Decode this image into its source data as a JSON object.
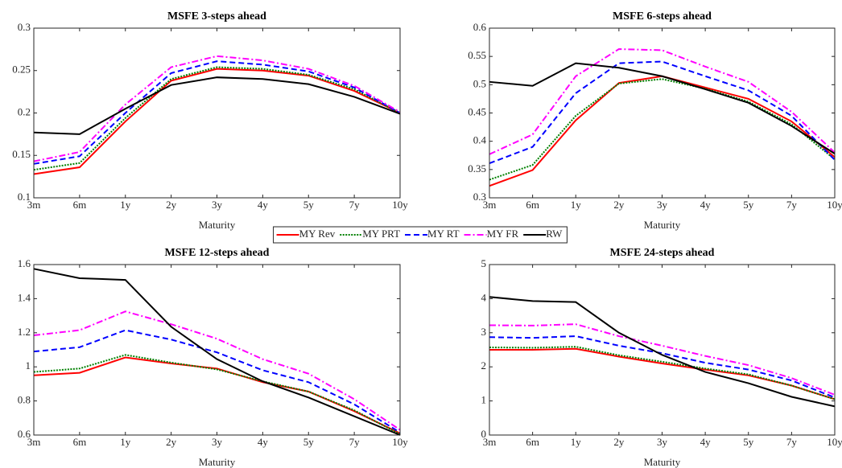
{
  "legend": [
    {
      "name": "MY Rev",
      "color": "#ff0000",
      "dash": "solid"
    },
    {
      "name": "MY PRT",
      "color": "#008000",
      "dash": "dotted"
    },
    {
      "name": "MY RT",
      "color": "#0000ff",
      "dash": "dashed"
    },
    {
      "name": "MY FR",
      "color": "#ff00ff",
      "dash": "dashdot"
    },
    {
      "name": "RW",
      "color": "#000000",
      "dash": "solid"
    }
  ],
  "chart_data": [
    {
      "type": "line",
      "title": "MSFE 3-steps ahead",
      "xlabel": "Maturity",
      "categories": [
        "3m",
        "6m",
        "1y",
        "2y",
        "3y",
        "4y",
        "5y",
        "7y",
        "10y"
      ],
      "series": [
        {
          "values": [
            0.128,
            0.136,
            0.19,
            0.238,
            0.252,
            0.25,
            0.244,
            0.226,
            0.2
          ]
        },
        {
          "values": [
            0.133,
            0.141,
            0.194,
            0.24,
            0.254,
            0.252,
            0.245,
            0.228,
            0.2
          ]
        },
        {
          "values": [
            0.14,
            0.149,
            0.2,
            0.247,
            0.261,
            0.257,
            0.249,
            0.23,
            0.2
          ]
        },
        {
          "values": [
            0.143,
            0.154,
            0.21,
            0.254,
            0.267,
            0.262,
            0.252,
            0.232,
            0.201
          ]
        },
        {
          "values": [
            0.177,
            0.175,
            0.205,
            0.233,
            0.242,
            0.24,
            0.234,
            0.219,
            0.199
          ]
        }
      ],
      "ylim": [
        0.1,
        0.3
      ],
      "yticks": [
        0.1,
        0.15,
        0.2,
        0.25,
        0.3
      ]
    },
    {
      "type": "line",
      "title": "MSFE 6-steps ahead",
      "xlabel": "Maturity",
      "categories": [
        "3m",
        "6m",
        "1y",
        "2y",
        "3y",
        "4y",
        "5y",
        "7y",
        "10y"
      ],
      "series": [
        {
          "values": [
            0.321,
            0.349,
            0.437,
            0.503,
            0.515,
            0.495,
            0.475,
            0.435,
            0.372
          ]
        },
        {
          "values": [
            0.332,
            0.358,
            0.445,
            0.502,
            0.51,
            0.493,
            0.47,
            0.43,
            0.368
          ]
        },
        {
          "values": [
            0.361,
            0.39,
            0.485,
            0.538,
            0.541,
            0.515,
            0.49,
            0.445,
            0.367
          ]
        },
        {
          "values": [
            0.377,
            0.412,
            0.515,
            0.563,
            0.561,
            0.532,
            0.505,
            0.452,
            0.38
          ]
        },
        {
          "values": [
            0.505,
            0.498,
            0.538,
            0.53,
            0.515,
            0.492,
            0.468,
            0.427,
            0.378
          ]
        }
      ],
      "ylim": [
        0.3,
        0.6
      ],
      "yticks": [
        0.3,
        0.35,
        0.4,
        0.45,
        0.5,
        0.55,
        0.6
      ]
    },
    {
      "type": "line",
      "title": "MSFE 12-steps ahead",
      "xlabel": "Maturity",
      "categories": [
        "3m",
        "6m",
        "1y",
        "2y",
        "3y",
        "4y",
        "5y",
        "7y",
        "10y"
      ],
      "series": [
        {
          "values": [
            0.95,
            0.965,
            1.055,
            1.02,
            0.99,
            0.91,
            0.855,
            0.74,
            0.61
          ]
        },
        {
          "values": [
            0.97,
            0.99,
            1.07,
            1.025,
            0.985,
            0.915,
            0.855,
            0.745,
            0.605
          ]
        },
        {
          "values": [
            1.09,
            1.115,
            1.215,
            1.16,
            1.085,
            0.98,
            0.91,
            0.78,
            0.615
          ]
        },
        {
          "values": [
            1.185,
            1.215,
            1.325,
            1.25,
            1.165,
            1.045,
            0.96,
            0.81,
            0.63
          ]
        },
        {
          "values": [
            1.575,
            1.52,
            1.51,
            1.235,
            1.045,
            0.915,
            0.82,
            0.71,
            0.6
          ]
        }
      ],
      "ylim": [
        0.6,
        1.6
      ],
      "yticks": [
        0.6,
        0.8,
        1,
        1.2,
        1.4,
        1.6
      ]
    },
    {
      "type": "line",
      "title": "MSFE 24-steps ahead",
      "xlabel": "Maturity",
      "categories": [
        "3m",
        "6m",
        "1y",
        "2y",
        "3y",
        "4y",
        "5y",
        "7y",
        "10y"
      ],
      "series": [
        {
          "values": [
            2.5,
            2.5,
            2.53,
            2.3,
            2.1,
            1.92,
            1.75,
            1.45,
            1.05
          ]
        },
        {
          "values": [
            2.57,
            2.56,
            2.59,
            2.34,
            2.15,
            1.95,
            1.78,
            1.45,
            1.05
          ]
        },
        {
          "values": [
            2.87,
            2.85,
            2.9,
            2.62,
            2.4,
            2.12,
            1.92,
            1.6,
            1.1
          ]
        },
        {
          "values": [
            3.22,
            3.21,
            3.25,
            2.9,
            2.62,
            2.32,
            2.05,
            1.67,
            1.18
          ]
        },
        {
          "values": [
            4.05,
            3.93,
            3.9,
            3.0,
            2.35,
            1.85,
            1.52,
            1.12,
            0.84
          ]
        }
      ],
      "ylim": [
        0,
        5
      ],
      "yticks": [
        0,
        1,
        2,
        3,
        4,
        5
      ]
    }
  ]
}
